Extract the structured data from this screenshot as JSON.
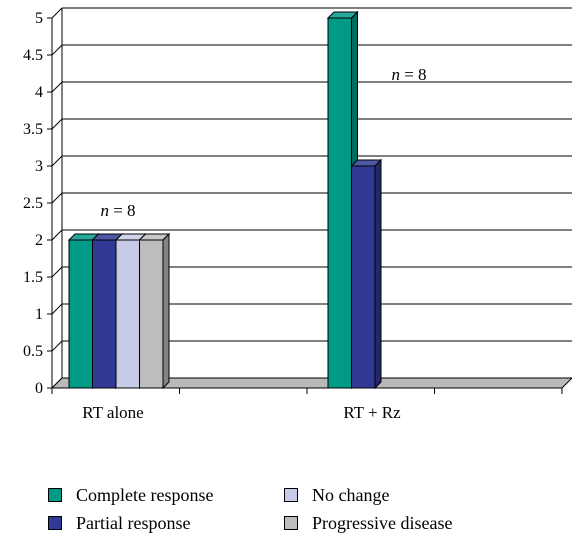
{
  "chart_data": {
    "type": "bar",
    "categories": [
      "RT alone",
      "RT + Rz"
    ],
    "series": [
      {
        "name": "Complete response",
        "values": [
          2,
          5
        ],
        "color": "#009a86"
      },
      {
        "name": "Partial response",
        "values": [
          2,
          3
        ],
        "color": "#303a96"
      },
      {
        "name": "No change",
        "values": [
          2,
          0
        ],
        "color": "#c7cbe8"
      },
      {
        "name": "Progressive disease",
        "values": [
          2,
          0
        ],
        "color": "#bdbdbd"
      }
    ],
    "ylim": [
      0,
      5
    ],
    "yticks": [
      "0",
      "0.5",
      "1",
      "1.5",
      "2",
      "2.5",
      "3",
      "3.5",
      "4",
      "4.5",
      "5"
    ],
    "annotations": [
      {
        "label_italic": "n",
        "label_rest": " = 8",
        "category": "RT alone"
      },
      {
        "label_italic": "n",
        "label_rest": " = 8",
        "category": "RT + Rz"
      }
    ],
    "grid": true,
    "legend_position": "bottom",
    "title": "",
    "xlabel": "",
    "ylabel": ""
  }
}
